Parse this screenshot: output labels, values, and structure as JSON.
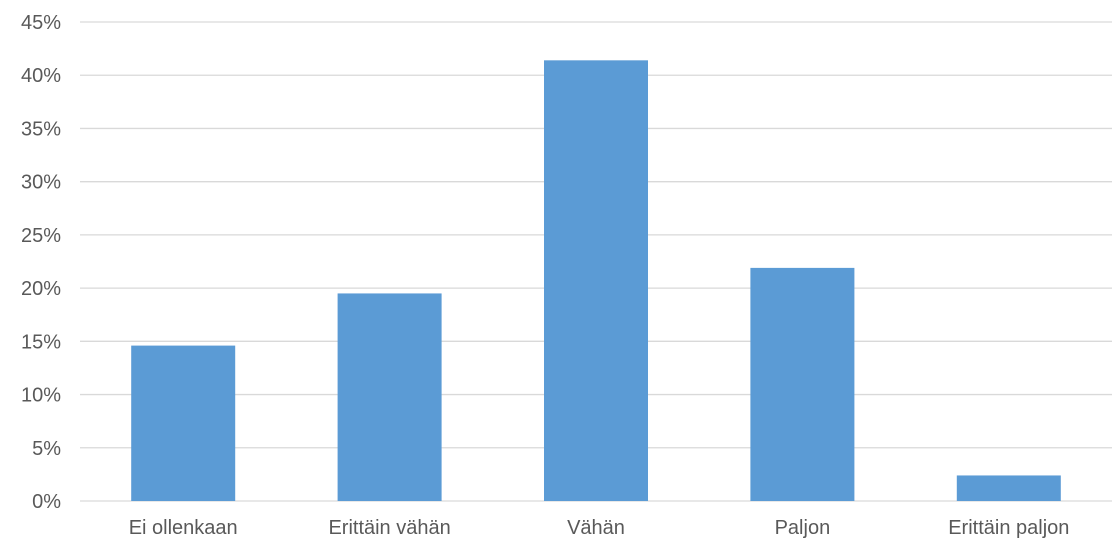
{
  "chart_data": {
    "type": "bar",
    "title": "",
    "xlabel": "",
    "ylabel": "",
    "categories": [
      "Ei ollenkaan",
      "Erittäin vähän",
      "Vähän",
      "Paljon",
      "Erittäin paljon"
    ],
    "values": [
      14.6,
      19.5,
      41.4,
      21.9,
      2.4
    ],
    "value_unit": "%",
    "ylim": [
      0,
      45
    ],
    "y_ticks": [
      {
        "value": 0,
        "label": "0%"
      },
      {
        "value": 5,
        "label": "5%"
      },
      {
        "value": 10,
        "label": "10%"
      },
      {
        "value": 15,
        "label": "15%"
      },
      {
        "value": 20,
        "label": "20%"
      },
      {
        "value": 25,
        "label": "25%"
      },
      {
        "value": 30,
        "label": "30%"
      },
      {
        "value": 35,
        "label": "35%"
      },
      {
        "value": 40,
        "label": "40%"
      },
      {
        "value": 45,
        "label": "45%"
      }
    ],
    "grid": true,
    "legend": "none",
    "colors": {
      "bar": "#5b9bd5",
      "grid": "#d9d9d9",
      "text": "#595959"
    }
  }
}
